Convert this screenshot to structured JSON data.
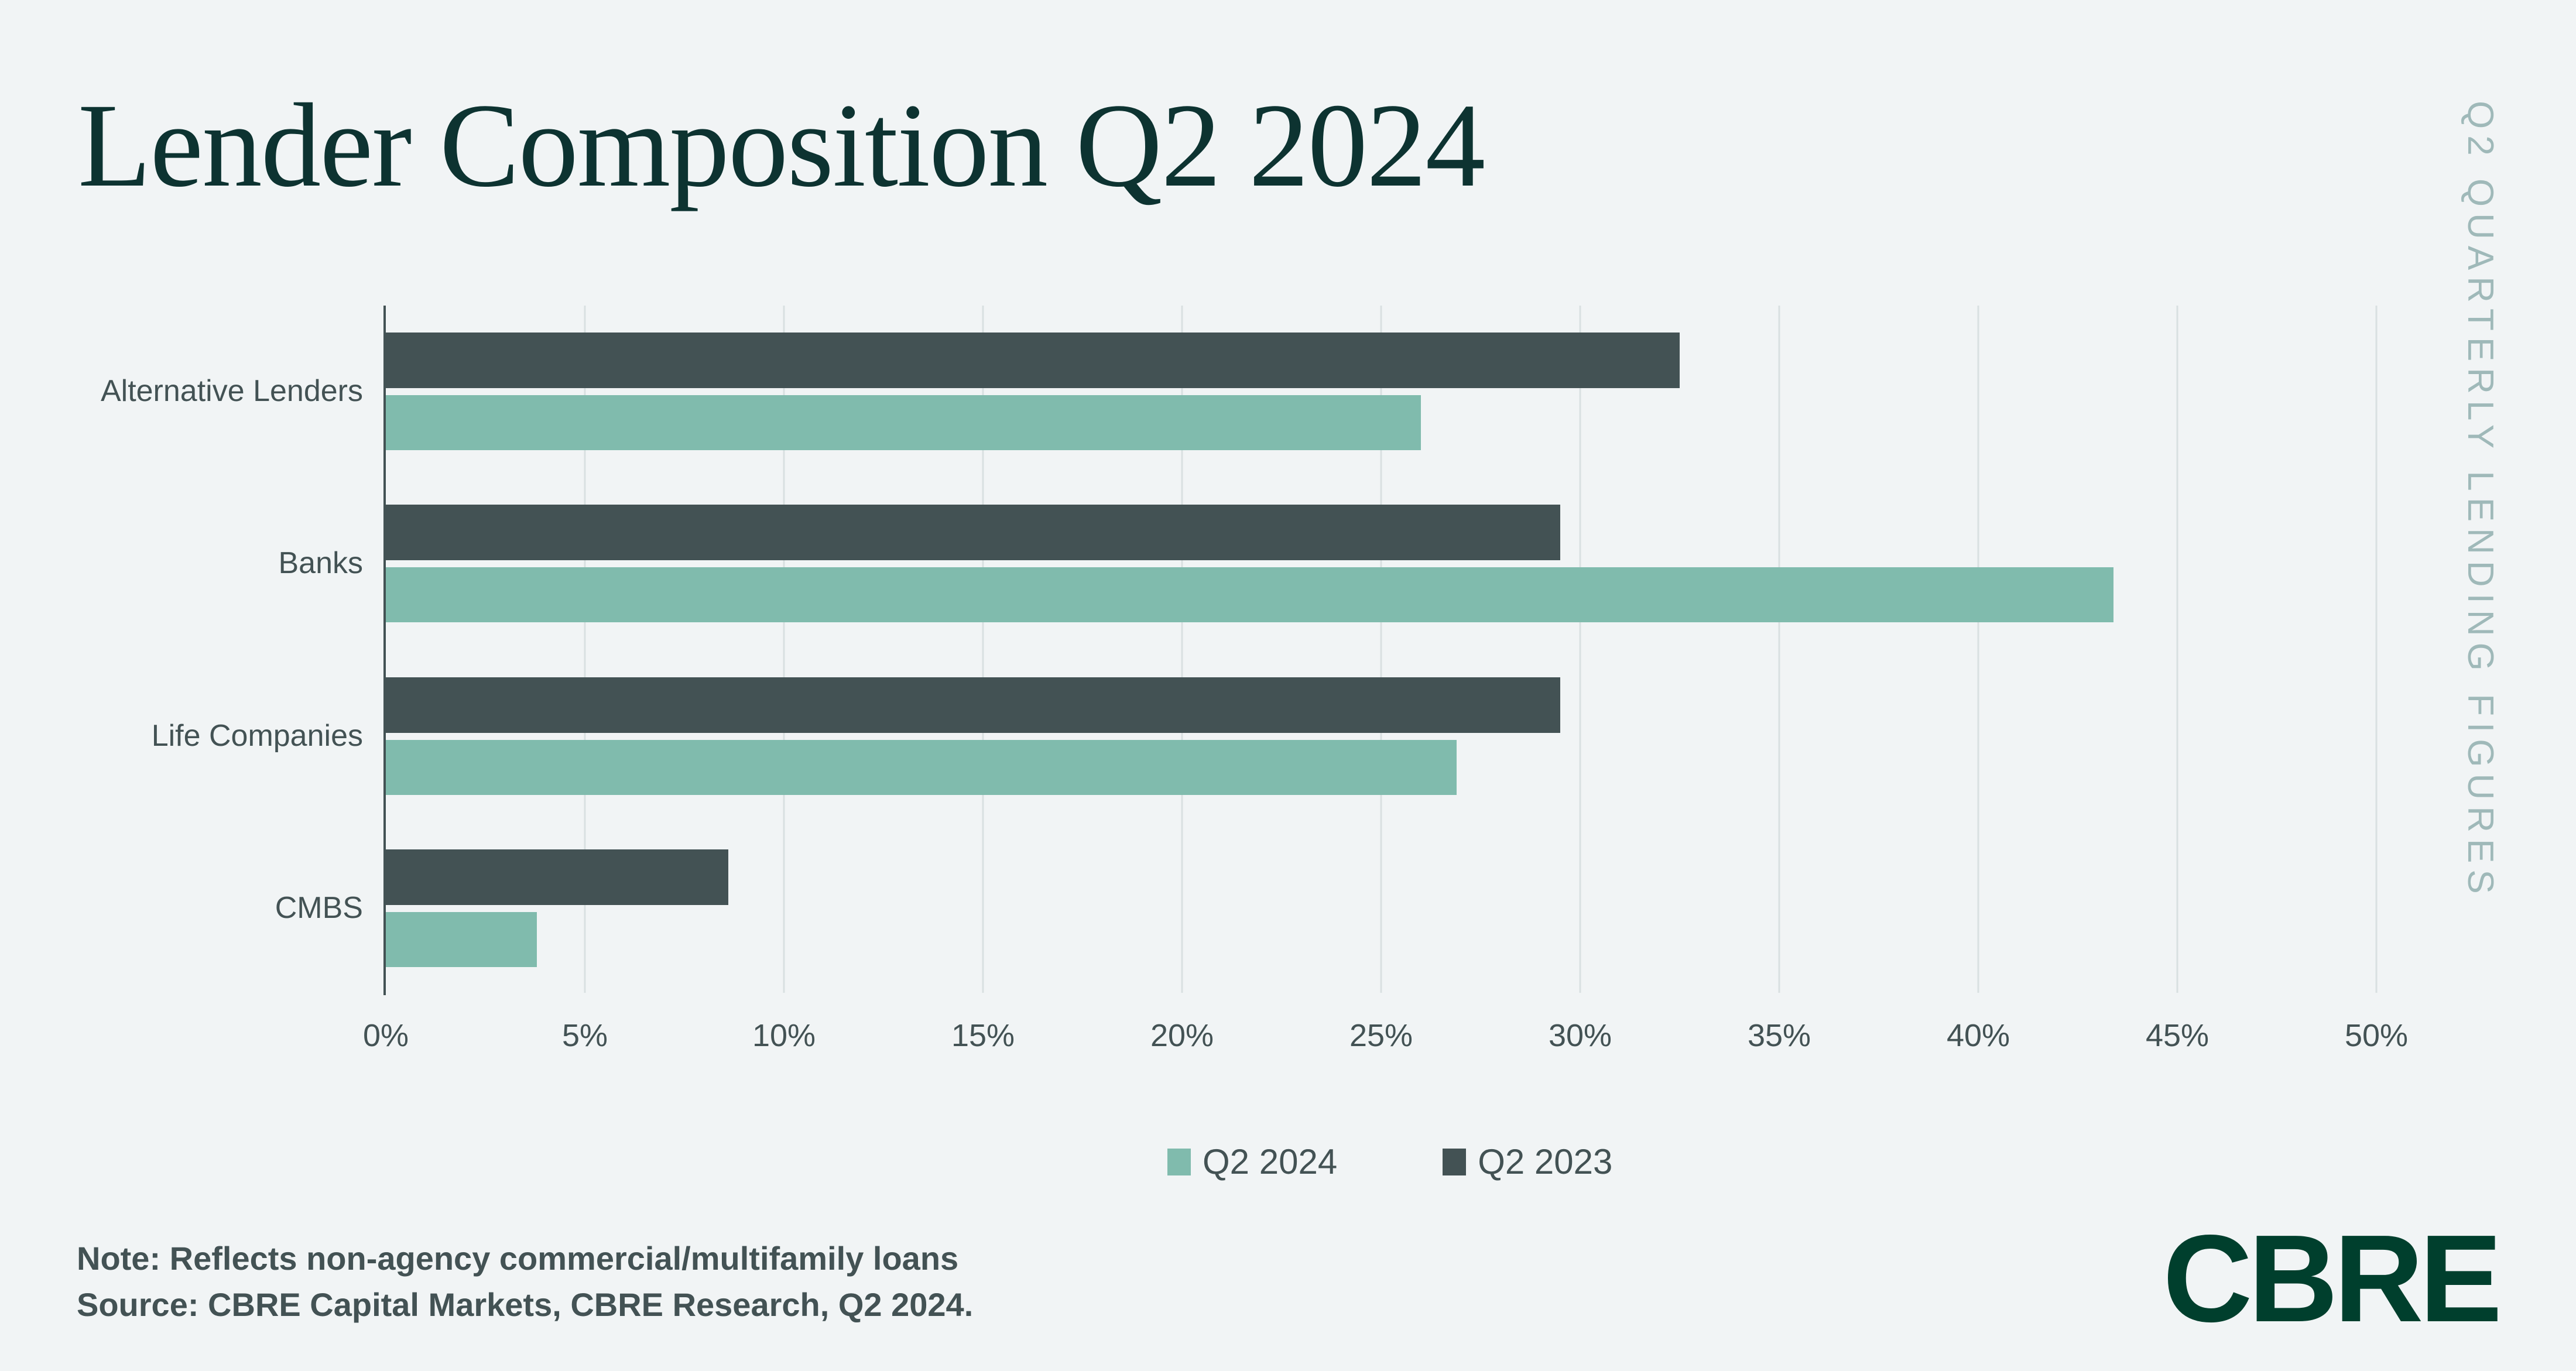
{
  "title": "Lender Composition Q2 2024",
  "side_label": "Q2 QUARTERLY LENDING FIGURES",
  "note_line1": "Note: Reflects non-agency commercial/multifamily loans",
  "note_line2": "Source: CBRE Capital Markets, CBRE Research, Q2 2024.",
  "logo_text": "CBRE",
  "colors": {
    "background": "#F1F4F5",
    "title": "#0D3331",
    "side_label": "#9FB9B9",
    "axis_text": "#435254",
    "axis_line": "#435254",
    "gridline": "#D9E0E1",
    "q2_2024": "#80BBAD",
    "q2_2023": "#435254",
    "logo": "#003F2D"
  },
  "chart_data": {
    "type": "bar",
    "orientation": "horizontal",
    "title": "Lender Composition Q2 2024",
    "categories": [
      "Alternative Lenders",
      "Banks",
      "Life Companies",
      "CMBS"
    ],
    "series": [
      {
        "name": "Q2 2024",
        "color": "#80BBAD",
        "values": [
          26.0,
          43.4,
          26.9,
          3.8
        ]
      },
      {
        "name": "Q2 2023",
        "color": "#435254",
        "values": [
          32.5,
          29.5,
          29.5,
          8.6
        ]
      }
    ],
    "group_bar_order_top_to_bottom": [
      "Q2 2023",
      "Q2 2024"
    ],
    "x_ticks": [
      "0%",
      "5%",
      "10%",
      "15%",
      "20%",
      "25%",
      "30%",
      "35%",
      "40%",
      "45%",
      "50%"
    ],
    "xlim": [
      0,
      50
    ],
    "xlabel": "",
    "ylabel": "",
    "grid": true,
    "legend_position": "bottom"
  }
}
